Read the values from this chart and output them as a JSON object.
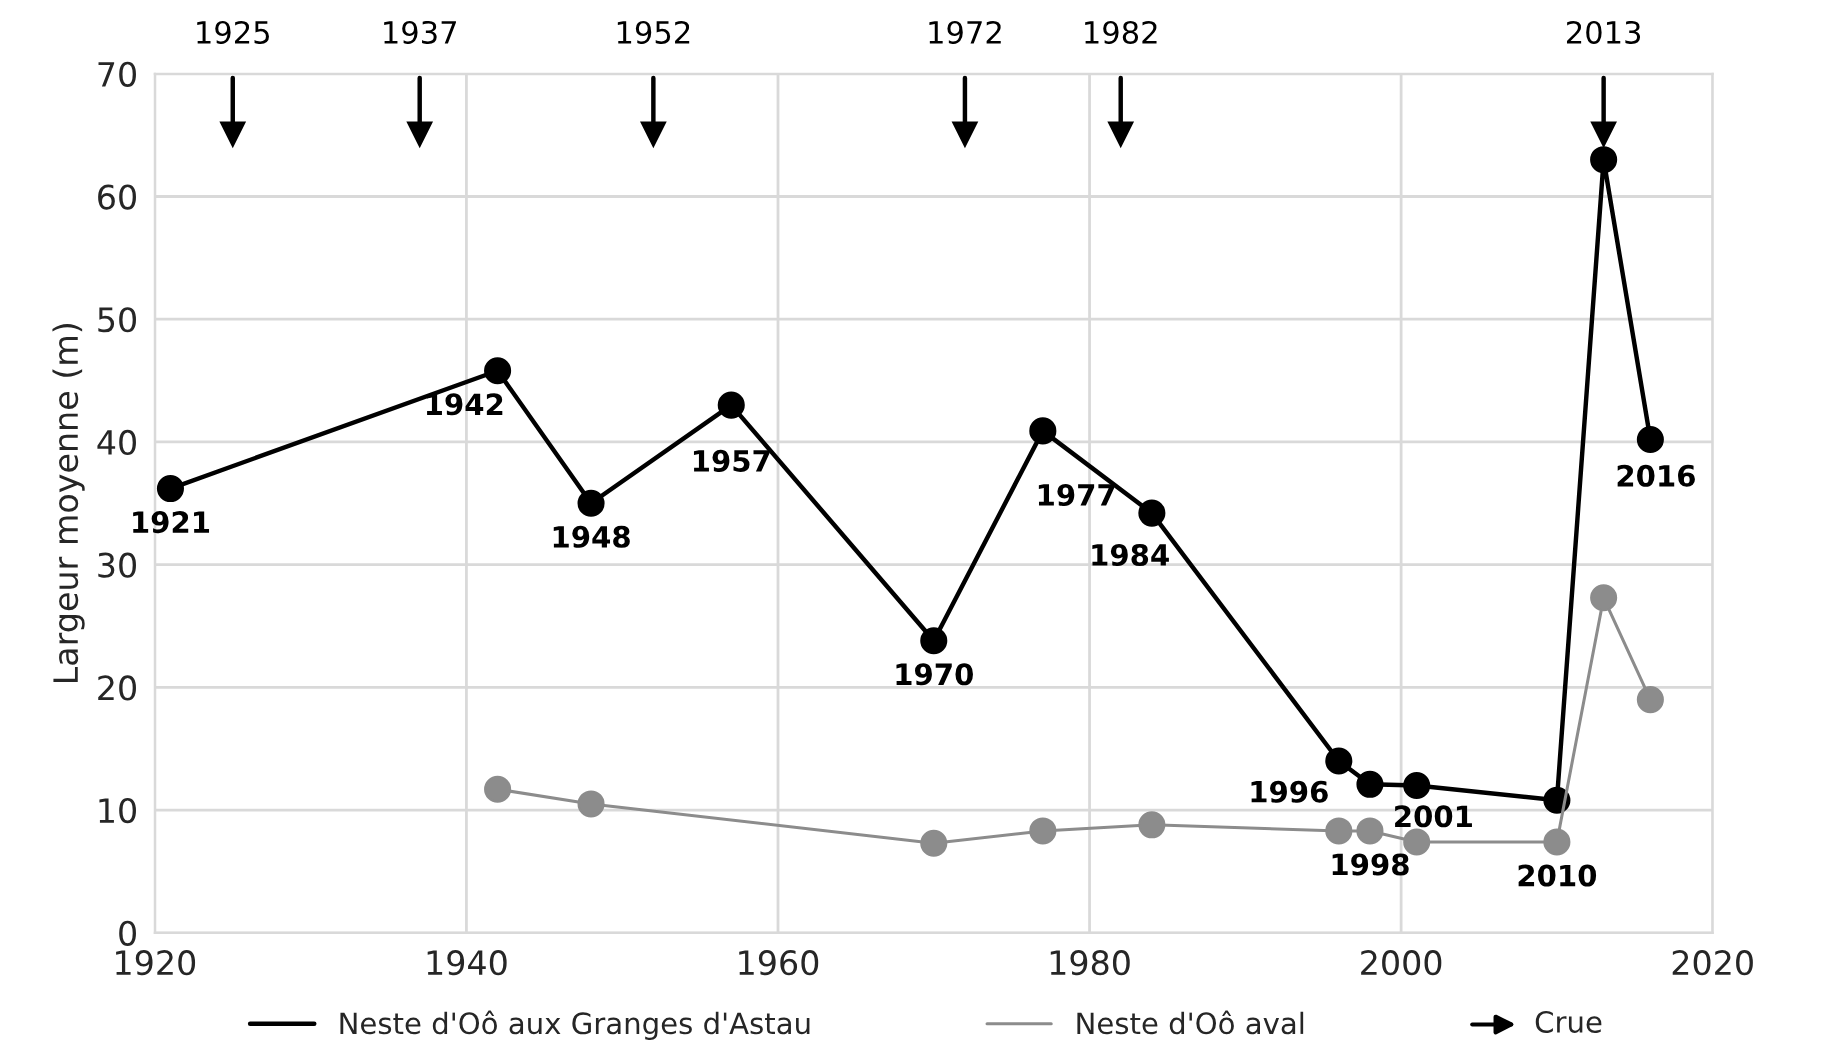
{
  "chart_data": {
    "type": "line",
    "ylabel": "Largeur moyenne (m)",
    "xlim": [
      1920,
      2020
    ],
    "xticks": [
      1920,
      1940,
      1960,
      1980,
      2000,
      2020
    ],
    "ylim": [
      0,
      70
    ],
    "yticks": [
      0,
      10,
      20,
      30,
      40,
      50,
      60,
      70
    ],
    "grid": true,
    "legend": "bottom",
    "marker": "circle",
    "line_style": "solid",
    "series": [
      {
        "name": "Neste d'Oô aux Granges d'Astau",
        "color": "#000000",
        "x": [
          1921,
          1942,
          1948,
          1957,
          1970,
          1977,
          1984,
          1996,
          1998,
          2001,
          2010,
          2013,
          2016
        ],
        "values": [
          36.2,
          45.8,
          35.0,
          43.0,
          23.8,
          40.9,
          34.2,
          14.0,
          12.1,
          12.0,
          10.8,
          63.0,
          40.2
        ]
      },
      {
        "name": "Neste d'Oô aval",
        "color": "#8c8c8c",
        "x": [
          1942,
          1948,
          1970,
          1977,
          1984,
          1996,
          1998,
          2001,
          2010,
          2013,
          2016
        ],
        "values": [
          11.7,
          10.5,
          7.3,
          8.3,
          8.8,
          8.3,
          8.3,
          7.4,
          7.4,
          27.3,
          19.0
        ]
      }
    ],
    "annotations": [
      {
        "text": "1921",
        "x": 1921,
        "y": 36.2
      },
      {
        "text": "1942",
        "x": 1942,
        "y": 45.8
      },
      {
        "text": "1948",
        "x": 1948,
        "y": 35.0
      },
      {
        "text": "1957",
        "x": 1957,
        "y": 43.0
      },
      {
        "text": "1970",
        "x": 1970,
        "y": 23.8
      },
      {
        "text": "1977",
        "x": 1977,
        "y": 40.9
      },
      {
        "text": "1984",
        "x": 1984,
        "y": 34.2
      },
      {
        "text": "1996",
        "x": 1996,
        "y": 14.0
      },
      {
        "text": "2001",
        "x": 2001,
        "y": 12.0
      },
      {
        "text": "2016",
        "x": 2016,
        "y": 40.2
      },
      {
        "text": "1998",
        "x": 1998,
        "y": 8.3
      },
      {
        "text": "2010",
        "x": 2010,
        "y": 7.4
      },
      "Crue"
    ],
    "ref_lines": [
      {
        "axis": "x",
        "value": 1925,
        "label": "1925"
      },
      {
        "axis": "x",
        "value": 1937,
        "label": "1937"
      },
      {
        "axis": "x",
        "value": 1952,
        "label": "1952"
      },
      {
        "axis": "x",
        "value": 1972,
        "label": "1972"
      },
      {
        "axis": "x",
        "value": 1982,
        "label": "1982"
      },
      {
        "axis": "x",
        "value": 2013,
        "label": "2013"
      }
    ]
  }
}
